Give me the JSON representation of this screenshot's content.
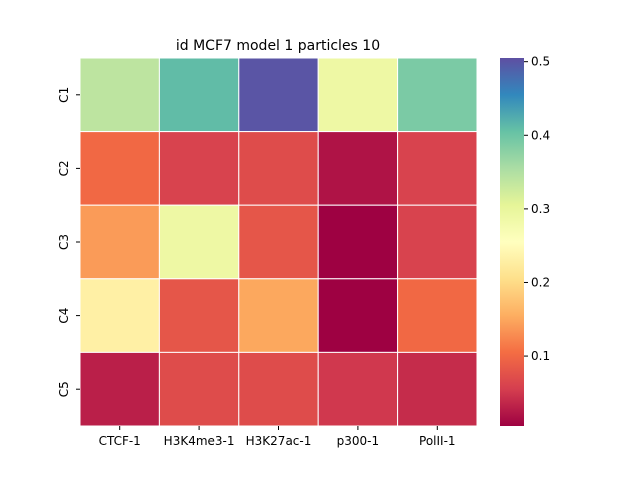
{
  "chart_data": {
    "type": "heatmap",
    "title": "id MCF7 model 1 particles 10",
    "xlabel": "",
    "ylabel": "",
    "x_categories": [
      "CTCF-1",
      "H3K4me3-1",
      "H3K27ac-1",
      "p300-1",
      "PolII-1"
    ],
    "y_categories": [
      "C1",
      "C2",
      "C3",
      "C4",
      "C5"
    ],
    "values": [
      [
        0.34,
        0.41,
        0.5,
        0.29,
        0.39
      ],
      [
        0.1,
        0.06,
        0.07,
        0.02,
        0.06
      ],
      [
        0.14,
        0.29,
        0.08,
        0.005,
        0.06
      ],
      [
        0.23,
        0.08,
        0.15,
        0.005,
        0.1
      ],
      [
        0.03,
        0.07,
        0.07,
        0.05,
        0.04
      ]
    ],
    "colorbar": {
      "vmin": 0.005,
      "vmax": 0.505,
      "ticks": [
        0.1,
        0.2,
        0.3,
        0.4,
        0.5
      ],
      "tick_labels": [
        "0.1",
        "0.2",
        "0.3",
        "0.4",
        "0.5"
      ],
      "colormap": "Spectral",
      "stops": [
        "#9e0142",
        "#d53e4f",
        "#f46d43",
        "#fdae61",
        "#fee08b",
        "#ffffbf",
        "#e6f598",
        "#abdda4",
        "#66c2a5",
        "#3288bd",
        "#5e4fa2"
      ]
    },
    "grid": true,
    "cell_border_color": "#ffffff"
  }
}
